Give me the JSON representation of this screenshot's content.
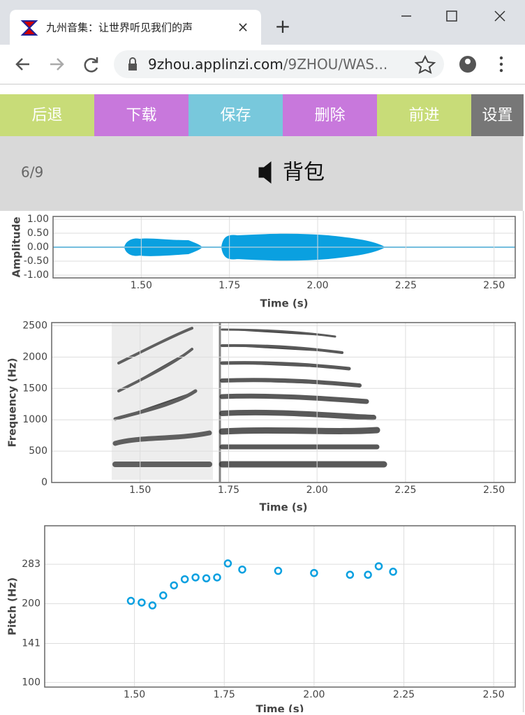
{
  "browser": {
    "tab_title": "九州音集：让世界听见我们的声",
    "url_host": "9zhou.applinzi.com",
    "url_path": "/9ZHOU/WAS..."
  },
  "toolbar": {
    "buttons": [
      "后退",
      "下载",
      "保存",
      "删除",
      "前进",
      "设置"
    ]
  },
  "word": {
    "progress": "6/9",
    "text": "背包"
  },
  "charts": [
    {
      "type": "waveform",
      "xlabel": "Time (s)",
      "ylabel": "Amplitude",
      "xlim": [
        1.25,
        2.56
      ],
      "xticks": [
        {
          "value": 1.5,
          "label": "1.50"
        },
        {
          "value": 1.75,
          "label": "1.75"
        },
        {
          "value": 2.0,
          "label": "2.00"
        },
        {
          "value": 2.25,
          "label": "2.25"
        },
        {
          "value": 2.5,
          "label": "2.50"
        }
      ],
      "ylim": [
        -1.1,
        1.1
      ],
      "yticks": [
        {
          "value": 1,
          "label": "1.00"
        },
        {
          "value": 0.5,
          "label": "0.50"
        },
        {
          "value": 0,
          "label": "0.00"
        },
        {
          "value": -0.5,
          "label": "-0.50"
        },
        {
          "value": -1,
          "label": "-1.00"
        }
      ],
      "grid": true
    },
    {
      "type": "spectrogram",
      "xlabel": "Time (s)",
      "ylabel": "Frequency (Hz)",
      "xlim": [
        1.25,
        2.56
      ],
      "xticks": [
        {
          "value": 1.5,
          "label": "1.50"
        },
        {
          "value": 1.75,
          "label": "1.75"
        },
        {
          "value": 2.0,
          "label": "2.00"
        },
        {
          "value": 2.25,
          "label": "2.25"
        },
        {
          "value": 2.5,
          "label": "2.50"
        }
      ],
      "ylim": [
        0,
        2550
      ],
      "yticks": [
        0,
        500,
        1000,
        1500,
        2000,
        2500
      ],
      "grid": true
    },
    {
      "type": "scatter",
      "xlabel": "Time (s)",
      "ylabel": "Pitch (Hz)",
      "color": "#0aa0e0",
      "log_scale": true,
      "xlim": [
        1.25,
        2.56
      ],
      "xticks": [
        {
          "value": 1.5,
          "label": "1.50"
        },
        {
          "value": 1.75,
          "label": "1.75"
        },
        {
          "value": 2.0,
          "label": "2.00"
        },
        {
          "value": 2.25,
          "label": "2.25"
        },
        {
          "value": 2.5,
          "label": "2.50"
        }
      ],
      "ylim": [
        96,
        397
      ],
      "yticks": [
        283,
        200,
        141,
        100
      ],
      "grid": true,
      "x": [
        1.49,
        1.52,
        1.55,
        1.58,
        1.61,
        1.64,
        1.67,
        1.7,
        1.73,
        1.76,
        1.8,
        1.9,
        2.0,
        2.1,
        2.15,
        2.18,
        2.22
      ],
      "values": [
        205,
        202,
        197,
        215,
        235,
        248,
        252,
        250,
        252,
        285,
        270,
        267,
        262,
        258,
        258,
        278,
        265
      ]
    }
  ]
}
